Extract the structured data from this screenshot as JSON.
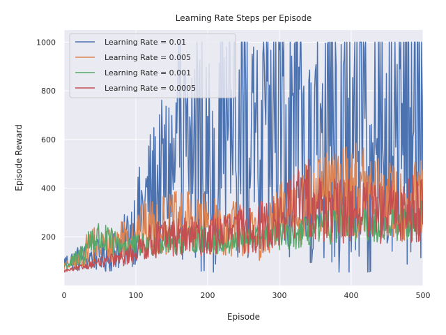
{
  "chart_data": {
    "type": "line",
    "title": "Learning Rate Steps per Episode",
    "xlabel": "Episode",
    "ylabel": "Episode Reward",
    "xlim": [
      0,
      500
    ],
    "ylim": [
      0,
      1050
    ],
    "xticks": [
      0,
      100,
      200,
      300,
      400,
      500
    ],
    "yticks": [
      200,
      400,
      600,
      800,
      1000
    ],
    "grid": true,
    "legend_position": "top-left",
    "series": [
      {
        "name": "Learning Rate = 0.01",
        "color": "#4c72b0",
        "x": [
          0,
          20,
          40,
          60,
          80,
          100,
          120,
          140,
          160,
          180,
          200,
          220,
          240,
          260,
          280,
          300,
          320,
          340,
          360,
          380,
          400,
          420,
          440,
          460,
          480,
          500
        ],
        "y": [
          100,
          110,
          120,
          130,
          160,
          260,
          380,
          440,
          520,
          560,
          520,
          480,
          620,
          520,
          560,
          620,
          560,
          500,
          560,
          540,
          580,
          520,
          380,
          700,
          780,
          560
        ],
        "volatility": [
          0.5,
          1.0,
          1.0,
          1.2,
          1.2,
          1.4,
          1.4,
          1.6,
          1.8,
          1.8,
          1.8,
          1.8,
          1.8,
          1.8,
          2.0,
          2.0,
          2.0,
          1.8,
          1.8,
          2.0,
          2.0,
          2.0,
          1.8,
          2.0,
          2.0,
          2.0
        ]
      },
      {
        "name": "Learning Rate = 0.005",
        "color": "#dd8452",
        "x": [
          0,
          20,
          40,
          60,
          80,
          100,
          120,
          140,
          160,
          180,
          200,
          220,
          240,
          260,
          280,
          300,
          320,
          340,
          360,
          380,
          400,
          420,
          440,
          460,
          480,
          500
        ],
        "y": [
          80,
          100,
          180,
          160,
          200,
          220,
          240,
          250,
          260,
          260,
          250,
          230,
          240,
          210,
          200,
          280,
          320,
          340,
          360,
          380,
          400,
          380,
          360,
          340,
          330,
          360
        ],
        "volatility": [
          0.4,
          0.8,
          1.0,
          0.9,
          0.9,
          1.0,
          1.0,
          1.0,
          1.0,
          1.0,
          1.0,
          1.0,
          1.0,
          1.0,
          1.0,
          1.0,
          1.0,
          1.0,
          1.0,
          1.0,
          1.0,
          1.0,
          1.0,
          1.0,
          1.0,
          1.0
        ]
      },
      {
        "name": "Learning Rate = 0.001",
        "color": "#55a868",
        "x": [
          0,
          20,
          40,
          60,
          80,
          100,
          120,
          140,
          160,
          180,
          200,
          220,
          240,
          260,
          280,
          300,
          320,
          340,
          360,
          380,
          400,
          420,
          440,
          460,
          480,
          500
        ],
        "y": [
          80,
          110,
          200,
          180,
          170,
          160,
          170,
          180,
          180,
          190,
          190,
          180,
          180,
          190,
          200,
          200,
          210,
          220,
          230,
          250,
          260,
          250,
          250,
          260,
          260,
          270
        ],
        "volatility": [
          0.4,
          0.8,
          0.9,
          0.7,
          0.6,
          0.6,
          0.6,
          0.6,
          0.6,
          0.6,
          0.6,
          0.6,
          0.6,
          0.6,
          0.6,
          0.6,
          0.6,
          0.6,
          0.6,
          0.6,
          0.6,
          0.6,
          0.6,
          0.6,
          0.6,
          0.6
        ]
      },
      {
        "name": "Learning Rate = 0.0005",
        "color": "#c44e52",
        "x": [
          0,
          20,
          40,
          60,
          80,
          100,
          120,
          140,
          160,
          180,
          200,
          220,
          240,
          260,
          280,
          300,
          320,
          340,
          360,
          380,
          400,
          420,
          440,
          460,
          480,
          500
        ],
        "y": [
          60,
          70,
          90,
          100,
          110,
          140,
          180,
          200,
          200,
          200,
          200,
          220,
          220,
          240,
          240,
          260,
          340,
          360,
          320,
          300,
          320,
          300,
          290,
          300,
          320,
          330
        ],
        "volatility": [
          0.2,
          0.3,
          0.4,
          0.5,
          0.6,
          0.7,
          0.8,
          0.8,
          0.8,
          0.8,
          0.8,
          0.8,
          0.9,
          0.9,
          0.9,
          0.9,
          0.9,
          0.9,
          0.9,
          0.9,
          0.9,
          0.9,
          0.9,
          0.9,
          0.9,
          0.9
        ]
      }
    ]
  }
}
